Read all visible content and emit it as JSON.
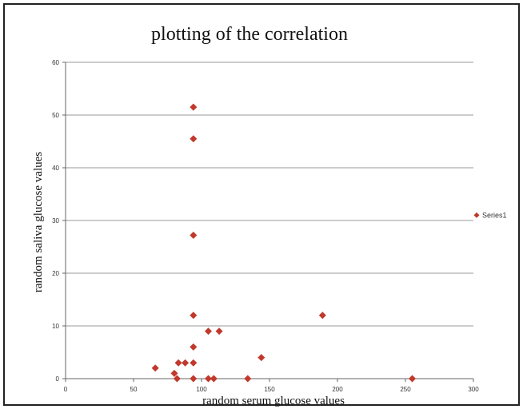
{
  "chart_data": {
    "type": "scatter",
    "title": "plotting of the correlation",
    "xlabel": "random serum glucose values",
    "ylabel": "random saliva glucose values",
    "xlim": [
      0,
      300
    ],
    "ylim": [
      0,
      60
    ],
    "x_ticks": [
      "0",
      "50",
      "100",
      "150",
      "200",
      "250",
      "300"
    ],
    "y_ticks": [
      "0",
      "10",
      "20",
      "30",
      "40",
      "50",
      "60"
    ],
    "grid": "horizontal",
    "legend_position": "right",
    "series": [
      {
        "name": "Series1",
        "color": "#c0392b",
        "marker": "diamond",
        "points": [
          {
            "x": 94,
            "y": 51.5
          },
          {
            "x": 94,
            "y": 45.5
          },
          {
            "x": 94,
            "y": 27.2
          },
          {
            "x": 94,
            "y": 12
          },
          {
            "x": 94,
            "y": 6
          },
          {
            "x": 94,
            "y": 3
          },
          {
            "x": 94,
            "y": 0
          },
          {
            "x": 66,
            "y": 2
          },
          {
            "x": 80,
            "y": 1
          },
          {
            "x": 82,
            "y": 0
          },
          {
            "x": 83,
            "y": 3
          },
          {
            "x": 88,
            "y": 3
          },
          {
            "x": 105,
            "y": 9
          },
          {
            "x": 113,
            "y": 9
          },
          {
            "x": 105,
            "y": 0
          },
          {
            "x": 109,
            "y": 0
          },
          {
            "x": 134,
            "y": 0
          },
          {
            "x": 144,
            "y": 4
          },
          {
            "x": 189,
            "y": 12
          },
          {
            "x": 255,
            "y": 0
          }
        ]
      }
    ]
  }
}
